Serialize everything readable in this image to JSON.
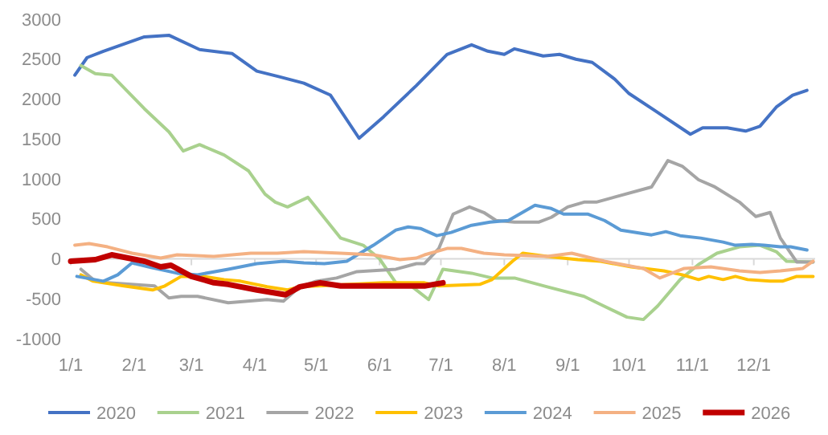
{
  "chart_data": {
    "type": "line",
    "xlim": [
      "--01-01",
      "--12-31"
    ],
    "ylim": [
      -1000,
      3000
    ],
    "yticks": [
      -1000,
      -500,
      0,
      500,
      1000,
      1500,
      2000,
      2500,
      3000
    ],
    "xticks": [
      {
        "value": "--01-01",
        "label": "1/1"
      },
      {
        "value": "--02-01",
        "label": "2/1"
      },
      {
        "value": "--03-01",
        "label": "3/1"
      },
      {
        "value": "--04-01",
        "label": "4/1"
      },
      {
        "value": "--05-01",
        "label": "5/1"
      },
      {
        "value": "--06-01",
        "label": "6/1"
      },
      {
        "value": "--07-01",
        "label": "7/1"
      },
      {
        "value": "--08-01",
        "label": "8/1"
      },
      {
        "value": "--09-01",
        "label": "9/1"
      },
      {
        "value": "--10-01",
        "label": "10/1"
      },
      {
        "value": "--11-01",
        "label": "11/1"
      },
      {
        "value": "--12-01",
        "label": "12/1"
      }
    ],
    "legend": "bottom",
    "series": [
      {
        "name": "2020",
        "color": "#4472c4",
        "x": [
          "--01-03",
          "--01-09",
          "--01-17",
          "--02-06",
          "--02-18",
          "--03-05",
          "--03-21",
          "--04-02",
          "--04-13",
          "--04-25",
          "--05-08",
          "--05-22",
          "--06-03",
          "--06-19",
          "--07-04",
          "--07-16",
          "--07-24",
          "--08-01",
          "--08-06",
          "--08-20",
          "--08-28",
          "--09-05",
          "--09-13",
          "--09-24",
          "--10-01",
          "--10-14",
          "--10-31",
          "--11-06",
          "--11-18",
          "--11-27",
          "--12-04",
          "--12-12",
          "--12-20",
          "--12-27"
        ],
        "values": [
          2300,
          2520,
          2600,
          2780,
          2800,
          2620,
          2570,
          2350,
          2280,
          2200,
          2050,
          1510,
          1780,
          2170,
          2560,
          2680,
          2600,
          2560,
          2630,
          2540,
          2560,
          2500,
          2460,
          2250,
          2070,
          1850,
          1560,
          1640,
          1640,
          1600,
          1660,
          1900,
          2050,
          2110
        ]
      },
      {
        "name": "2021",
        "color": "#a9d18e",
        "x": [
          "--01-06",
          "--01-13",
          "--01-21",
          "--02-06",
          "--02-18",
          "--02-25",
          "--03-05",
          "--03-17",
          "--03-29",
          "--04-06",
          "--04-11",
          "--04-17",
          "--04-27",
          "--05-13",
          "--05-24",
          "--06-01",
          "--06-09",
          "--06-17",
          "--06-25",
          "--07-02",
          "--07-16",
          "--07-26",
          "--08-06",
          "--08-22",
          "--09-09",
          "--09-17",
          "--09-30",
          "--10-08",
          "--10-15",
          "--10-26",
          "--11-04",
          "--11-13",
          "--11-24",
          "--12-04",
          "--12-12",
          "--12-17",
          "--12-30"
        ],
        "values": [
          2420,
          2320,
          2300,
          1880,
          1590,
          1350,
          1430,
          1300,
          1100,
          810,
          710,
          650,
          770,
          260,
          170,
          0,
          -300,
          -350,
          -510,
          -130,
          -180,
          -240,
          -240,
          -350,
          -470,
          -570,
          -730,
          -760,
          -590,
          -260,
          -70,
          70,
          150,
          170,
          90,
          -30,
          -40
        ]
      },
      {
        "name": "2022",
        "color": "#a5a5a5",
        "x": [
          "--01-06",
          "--01-12",
          "--01-19",
          "--02-11",
          "--02-18",
          "--02-24",
          "--03-04",
          "--03-19",
          "--04-07",
          "--04-15",
          "--04-23",
          "--05-01",
          "--05-11",
          "--05-21",
          "--06-09",
          "--06-19",
          "--06-23",
          "--06-30",
          "--07-07",
          "--07-15",
          "--07-22",
          "--07-28",
          "--08-06",
          "--08-18",
          "--08-24",
          "--09-01",
          "--09-09",
          "--09-15",
          "--10-12",
          "--10-20",
          "--10-27",
          "--11-04",
          "--11-12",
          "--11-24",
          "--12-02",
          "--12-09",
          "--12-14",
          "--12-22",
          "--12-30"
        ],
        "values": [
          -130,
          -260,
          -300,
          -340,
          -490,
          -470,
          -470,
          -550,
          -510,
          -530,
          -350,
          -280,
          -240,
          -160,
          -130,
          -60,
          -60,
          130,
          560,
          650,
          580,
          480,
          460,
          460,
          520,
          650,
          710,
          710,
          900,
          1230,
          1160,
          990,
          900,
          710,
          530,
          580,
          260,
          -40,
          -40
        ]
      },
      {
        "name": "2023",
        "color": "#ffc000",
        "x": [
          "--01-06",
          "--01-12",
          "--01-27",
          "--02-10",
          "--02-16",
          "--02-24",
          "--03-07",
          "--03-17",
          "--03-25",
          "--04-07",
          "--04-17",
          "--04-23",
          "--05-18",
          "--06-03",
          "--06-15",
          "--06-23",
          "--06-30",
          "--07-20",
          "--07-26",
          "--08-05",
          "--08-10",
          "--08-22",
          "--09-06",
          "--09-17",
          "--10-02",
          "--10-18",
          "--10-27",
          "--11-04",
          "--11-09",
          "--11-16",
          "--11-22",
          "--11-28",
          "--12-09",
          "--12-15",
          "--12-22",
          "--12-30"
        ],
        "values": [
          -200,
          -280,
          -340,
          -390,
          -340,
          -220,
          -220,
          -260,
          -280,
          -350,
          -390,
          -350,
          -320,
          -300,
          -300,
          -300,
          -340,
          -320,
          -260,
          -30,
          70,
          30,
          -10,
          -30,
          -100,
          -150,
          -200,
          -260,
          -220,
          -260,
          -220,
          -260,
          -280,
          -280,
          -220,
          -220
        ]
      },
      {
        "name": "2024",
        "color": "#5b9bd5",
        "x": [
          "--01-04",
          "--01-17",
          "--01-24",
          "--01-31",
          "--02-08",
          "--02-22",
          "--03-04",
          "--03-19",
          "--04-02",
          "--04-15",
          "--04-25",
          "--05-05",
          "--05-16",
          "--05-29",
          "--06-09",
          "--06-15",
          "--06-21",
          "--06-29",
          "--07-06",
          "--07-16",
          "--07-25",
          "--08-03",
          "--08-16",
          "--08-24",
          "--08-30",
          "--09-11",
          "--09-19",
          "--09-27",
          "--10-12",
          "--10-19",
          "--10-26",
          "--11-05",
          "--11-16",
          "--11-22",
          "--11-30",
          "--12-06",
          "--12-14",
          "--12-19",
          "--12-27"
        ],
        "values": [
          -220,
          -280,
          -200,
          -50,
          -100,
          -180,
          -200,
          -130,
          -60,
          -30,
          -50,
          -60,
          -30,
          170,
          360,
          400,
          380,
          290,
          330,
          420,
          460,
          480,
          670,
          630,
          560,
          560,
          480,
          360,
          300,
          340,
          290,
          260,
          210,
          170,
          180,
          170,
          150,
          150,
          110
        ]
      },
      {
        "name": "2025",
        "color": "#f4b183",
        "x": [
          "--01-03",
          "--01-10",
          "--01-19",
          "--01-31",
          "--02-14",
          "--02-22",
          "--03-12",
          "--03-30",
          "--04-12",
          "--04-25",
          "--05-13",
          "--05-29",
          "--06-11",
          "--06-19",
          "--06-23",
          "--07-04",
          "--07-11",
          "--07-22",
          "--08-01",
          "--08-22",
          "--09-03",
          "--09-19",
          "--10-08",
          "--10-16",
          "--10-28",
          "--11-10",
          "--11-24",
          "--12-04",
          "--12-14",
          "--12-25",
          "--12-30"
        ],
        "values": [
          170,
          190,
          150,
          70,
          10,
          50,
          30,
          70,
          70,
          90,
          70,
          50,
          -10,
          10,
          50,
          130,
          130,
          70,
          50,
          30,
          70,
          -30,
          -120,
          -240,
          -120,
          -100,
          -150,
          -170,
          -150,
          -120,
          -30
        ]
      },
      {
        "name": "2026",
        "color": "#c00000",
        "x": [
          "--01-01",
          "--01-13",
          "--01-21",
          "--01-29",
          "--02-06",
          "--02-14",
          "--02-19",
          "--03-01",
          "--03-12",
          "--03-19",
          "--04-02",
          "--04-16",
          "--04-23",
          "--05-03",
          "--05-13",
          "--05-29",
          "--06-19",
          "--06-23",
          "--07-02"
        ],
        "values": [
          -30,
          -10,
          50,
          10,
          -30,
          -100,
          -80,
          -220,
          -300,
          -320,
          -390,
          -450,
          -350,
          -300,
          -340,
          -340,
          -340,
          -340,
          -300
        ]
      }
    ]
  }
}
